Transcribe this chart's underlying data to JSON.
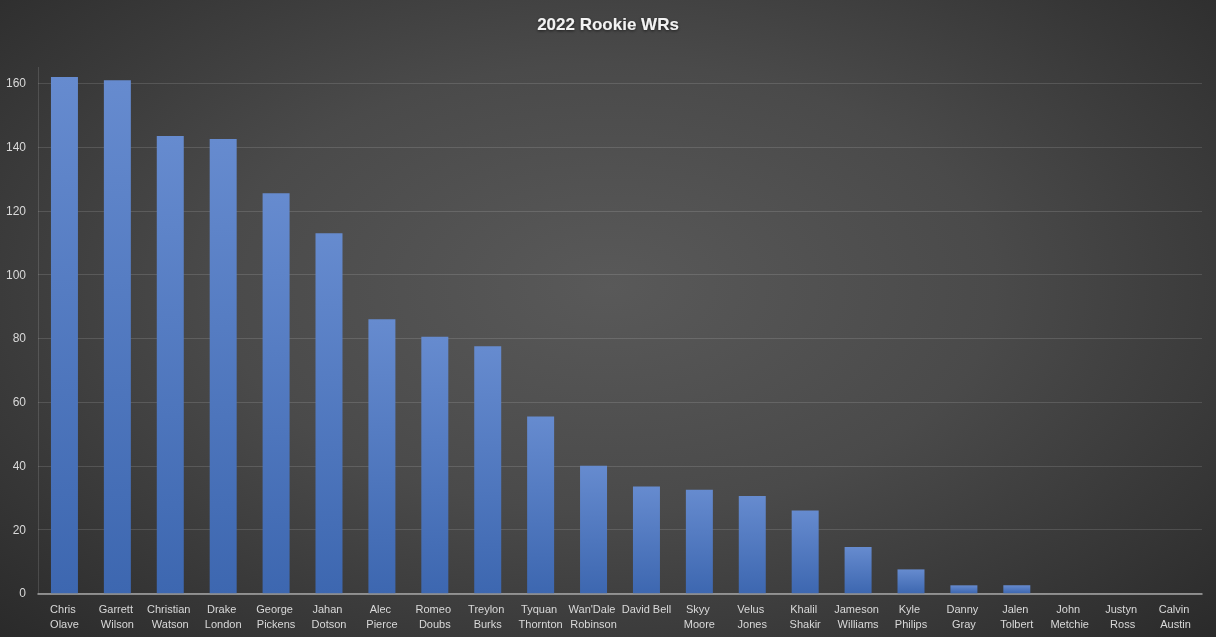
{
  "chart_data": {
    "type": "bar",
    "title": "2022 Rookie WRs",
    "categories": [
      "Chris Olave",
      "Garrett Wilson",
      "Christian Watson",
      "Drake London",
      "George Pickens",
      "Jahan Dotson",
      "Alec Pierce",
      "Romeo Doubs",
      "Treylon Burks",
      "Tyquan Thornton",
      "Wan'Dale Robinson",
      "David Bell",
      "Skyy Moore",
      "Velus Jones",
      "Khalil Shakir",
      "Jameson Williams",
      "Kyle Philips",
      "Danny Gray",
      "Jalen Tolbert",
      "John Metchie",
      "Justyn Ross",
      "Calvin Austin"
    ],
    "values": [
      162,
      161,
      143.5,
      142.5,
      125.5,
      113,
      86,
      80.5,
      77.5,
      55.5,
      40,
      33.5,
      32.5,
      30.5,
      26,
      14.5,
      7.5,
      2.5,
      2.5,
      0,
      0,
      0
    ],
    "color": "#4472c4",
    "ylim": [
      0,
      165
    ],
    "yticks": [
      0,
      20,
      40,
      60,
      80,
      100,
      120,
      140,
      160
    ],
    "grid": "y"
  }
}
